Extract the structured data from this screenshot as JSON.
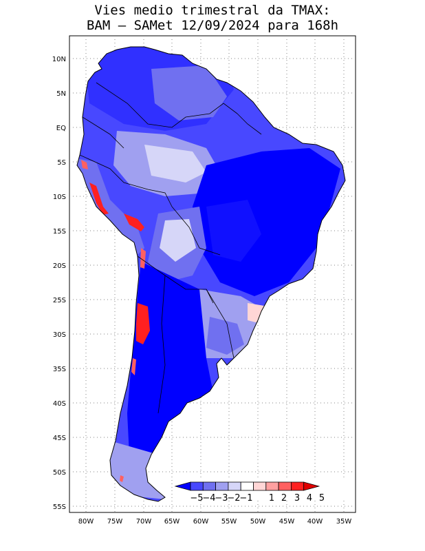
{
  "title": {
    "line1": "Vies medio trimestral da TMAX:",
    "line2": "BAM – SAMet 12/09/2024  para 168h"
  },
  "map": {
    "lon_range": [
      -83,
      -34
    ],
    "lat_range": [
      -56,
      13
    ],
    "grid": "dotted",
    "lon_ticks": [
      "80W",
      "75W",
      "70W",
      "65W",
      "60W",
      "55W",
      "50W",
      "45W",
      "40W",
      "35W"
    ],
    "lat_ticks": [
      "10N",
      "5N",
      "EQ",
      "5S",
      "10S",
      "15S",
      "20S",
      "25S",
      "30S",
      "35S",
      "40S",
      "45S",
      "50S",
      "55S"
    ]
  },
  "colorbar": {
    "labels": [
      "−5",
      "−4",
      "−3",
      "−2",
      "−1",
      "1",
      "2",
      "3",
      "4",
      "5"
    ],
    "colors": [
      "#0000ff",
      "#4848ff",
      "#7070f0",
      "#a0a0f0",
      "#d6d6f8",
      "#ffffff",
      "#ffd6d6",
      "#ffa0a0",
      "#ff6060",
      "#ff2020",
      "#e00000"
    ]
  }
}
